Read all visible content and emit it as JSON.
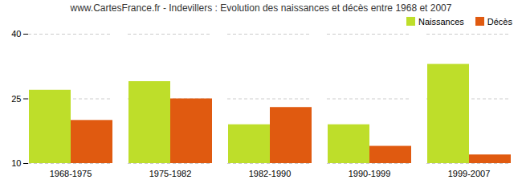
{
  "chart_data": {
    "type": "bar",
    "title": "www.CartesFrance.fr - Indevillers : Evolution des naissances et décès entre 1968 et 2007",
    "categories": [
      "1968-1975",
      "1975-1982",
      "1982-1990",
      "1990-1999",
      "1999-2007"
    ],
    "series": [
      {
        "name": "Naissances",
        "color": "#bede2a",
        "values": [
          27,
          29,
          19,
          19,
          33
        ]
      },
      {
        "name": "Décès",
        "color": "#e05a10",
        "values": [
          20,
          25,
          23,
          14,
          12
        ]
      }
    ],
    "ylim": [
      10,
      40
    ],
    "yticks": [
      10,
      25,
      40
    ],
    "grid": true,
    "legend": "upper right"
  }
}
